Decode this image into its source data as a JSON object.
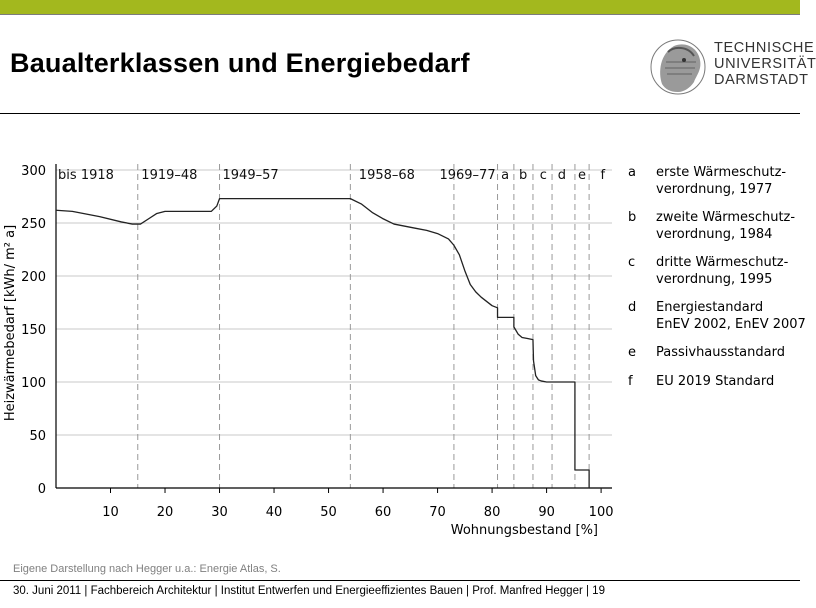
{
  "header": {
    "title": "Baualterklassen und Energiebedarf",
    "accent_color": "#a3b81e"
  },
  "logo": {
    "name": "tu-darmstadt-logo",
    "line1": "TECHNISCHE",
    "line2": "UNIVERSITÄT",
    "line3": "DARMSTADT"
  },
  "chart_data": {
    "type": "line",
    "ylabel": "Heizwärmebedarf [kWh/ m² a]",
    "xlabel": "Wohnungsbestand [%]",
    "xlim": [
      0,
      102
    ],
    "ylim": [
      0,
      300
    ],
    "xticks": [
      10,
      20,
      30,
      40,
      50,
      60,
      70,
      80,
      90,
      100
    ],
    "yticks": [
      0,
      50,
      100,
      150,
      200,
      250,
      300
    ],
    "grid": "horizontal",
    "line_color": "#222222",
    "x": [
      0,
      3,
      8,
      12,
      14,
      15.5,
      17,
      18.5,
      20,
      25,
      28.5,
      29.5,
      30,
      40,
      50,
      54,
      56,
      58,
      60,
      62,
      64,
      66,
      68,
      70,
      72,
      73,
      74,
      75,
      76,
      77,
      78,
      79,
      80,
      81,
      81,
      84,
      84,
      84.8,
      85.5,
      86.5,
      87.5,
      87.6,
      88,
      88.5,
      89,
      90,
      95.2,
      95.2,
      97.8,
      97.8,
      102
    ],
    "y": [
      262,
      261,
      256,
      251,
      249,
      249,
      254,
      259,
      261,
      261,
      261,
      266,
      273,
      273,
      273,
      273,
      268,
      260,
      254,
      249,
      247,
      245,
      243,
      240,
      235,
      229,
      220,
      205,
      192,
      185,
      180,
      176,
      172,
      170,
      161,
      161,
      152,
      145,
      142,
      141,
      140,
      120,
      106,
      102,
      101,
      100,
      100,
      17,
      17,
      0,
      0
    ],
    "era_dividers": [
      15,
      30,
      54,
      73,
      81,
      84,
      87.5,
      91,
      95.2,
      97.8
    ],
    "era_labels": [
      {
        "label": "bis 1918",
        "x": 5.5
      },
      {
        "label": "1919–48",
        "x": 20.8
      },
      {
        "label": "1949–57",
        "x": 35.7
      },
      {
        "label": "1958–68",
        "x": 60.7
      },
      {
        "label": "1969–77",
        "x": 75.5
      },
      {
        "label": "a",
        "x": 82.4
      },
      {
        "label": "b",
        "x": 85.7
      },
      {
        "label": "c",
        "x": 89.4
      },
      {
        "label": "d",
        "x": 92.8
      },
      {
        "label": "e",
        "x": 96.5
      },
      {
        "label": "f",
        "x": 100.3
      }
    ],
    "legend": [
      {
        "key": "a",
        "lines": [
          "erste Wärmeschutz-",
          "verordnung, 1977"
        ]
      },
      {
        "key": "b",
        "lines": [
          "zweite Wärmeschutz-",
          "verordnung, 1984"
        ]
      },
      {
        "key": "c",
        "lines": [
          "dritte Wärmeschutz-",
          "verordnung, 1995"
        ]
      },
      {
        "key": "d",
        "lines": [
          "Energiestandard",
          "EnEV 2002, EnEV 2007"
        ]
      },
      {
        "key": "e",
        "lines": [
          "Passivhausstandard"
        ]
      },
      {
        "key": "f",
        "lines": [
          "EU 2019 Standard"
        ]
      }
    ],
    "legend_placement": "right"
  },
  "source_note": "Eigene Darstellung nach Hegger u.a.: Energie Atlas, S.",
  "footer": {
    "text": "30. Juni 2011  |  Fachbereich Architektur  |  Institut Entwerfen und Energieeffizientes Bauen  |  Prof. Manfred Hegger  |  19"
  }
}
